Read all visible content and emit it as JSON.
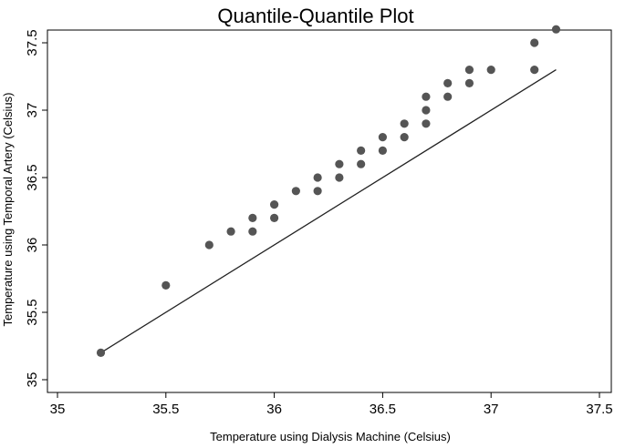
{
  "chart_data": {
    "type": "scatter",
    "title": "Quantile-Quantile Plot",
    "xlabel": "Temperature using Dialysis Machine (Celsius)",
    "ylabel": "Temperature using Temporal Artery (Celsius)",
    "xlim": [
      35,
      37.5
    ],
    "ylim": [
      35,
      37.5
    ],
    "x_ticks": [
      "35",
      "35.5",
      "36",
      "36.5",
      "37",
      "37.5"
    ],
    "y_ticks": [
      "35",
      "35.5",
      "36",
      "36.5",
      "37",
      "37.5"
    ],
    "grid": false,
    "legend": "none",
    "marker_color": "#555555",
    "line_color": "#222222",
    "points": [
      {
        "x": 35.2,
        "y": 35.2
      },
      {
        "x": 35.5,
        "y": 35.7
      },
      {
        "x": 35.7,
        "y": 36.0
      },
      {
        "x": 35.8,
        "y": 36.1
      },
      {
        "x": 35.9,
        "y": 36.1
      },
      {
        "x": 35.9,
        "y": 36.2
      },
      {
        "x": 36.0,
        "y": 36.2
      },
      {
        "x": 36.0,
        "y": 36.3
      },
      {
        "x": 36.1,
        "y": 36.4
      },
      {
        "x": 36.2,
        "y": 36.4
      },
      {
        "x": 36.2,
        "y": 36.5
      },
      {
        "x": 36.3,
        "y": 36.5
      },
      {
        "x": 36.3,
        "y": 36.6
      },
      {
        "x": 36.4,
        "y": 36.6
      },
      {
        "x": 36.4,
        "y": 36.7
      },
      {
        "x": 36.5,
        "y": 36.7
      },
      {
        "x": 36.5,
        "y": 36.8
      },
      {
        "x": 36.6,
        "y": 36.8
      },
      {
        "x": 36.6,
        "y": 36.9
      },
      {
        "x": 36.7,
        "y": 36.9
      },
      {
        "x": 36.7,
        "y": 37.0
      },
      {
        "x": 36.7,
        "y": 37.1
      },
      {
        "x": 36.8,
        "y": 37.1
      },
      {
        "x": 36.8,
        "y": 37.2
      },
      {
        "x": 36.9,
        "y": 37.2
      },
      {
        "x": 36.9,
        "y": 37.3
      },
      {
        "x": 37.0,
        "y": 37.3
      },
      {
        "x": 37.2,
        "y": 37.3
      },
      {
        "x": 37.2,
        "y": 37.5
      },
      {
        "x": 37.3,
        "y": 37.6
      }
    ],
    "reference_line": {
      "from": [
        35.2,
        35.2
      ],
      "to": [
        37.3,
        37.3
      ]
    }
  }
}
